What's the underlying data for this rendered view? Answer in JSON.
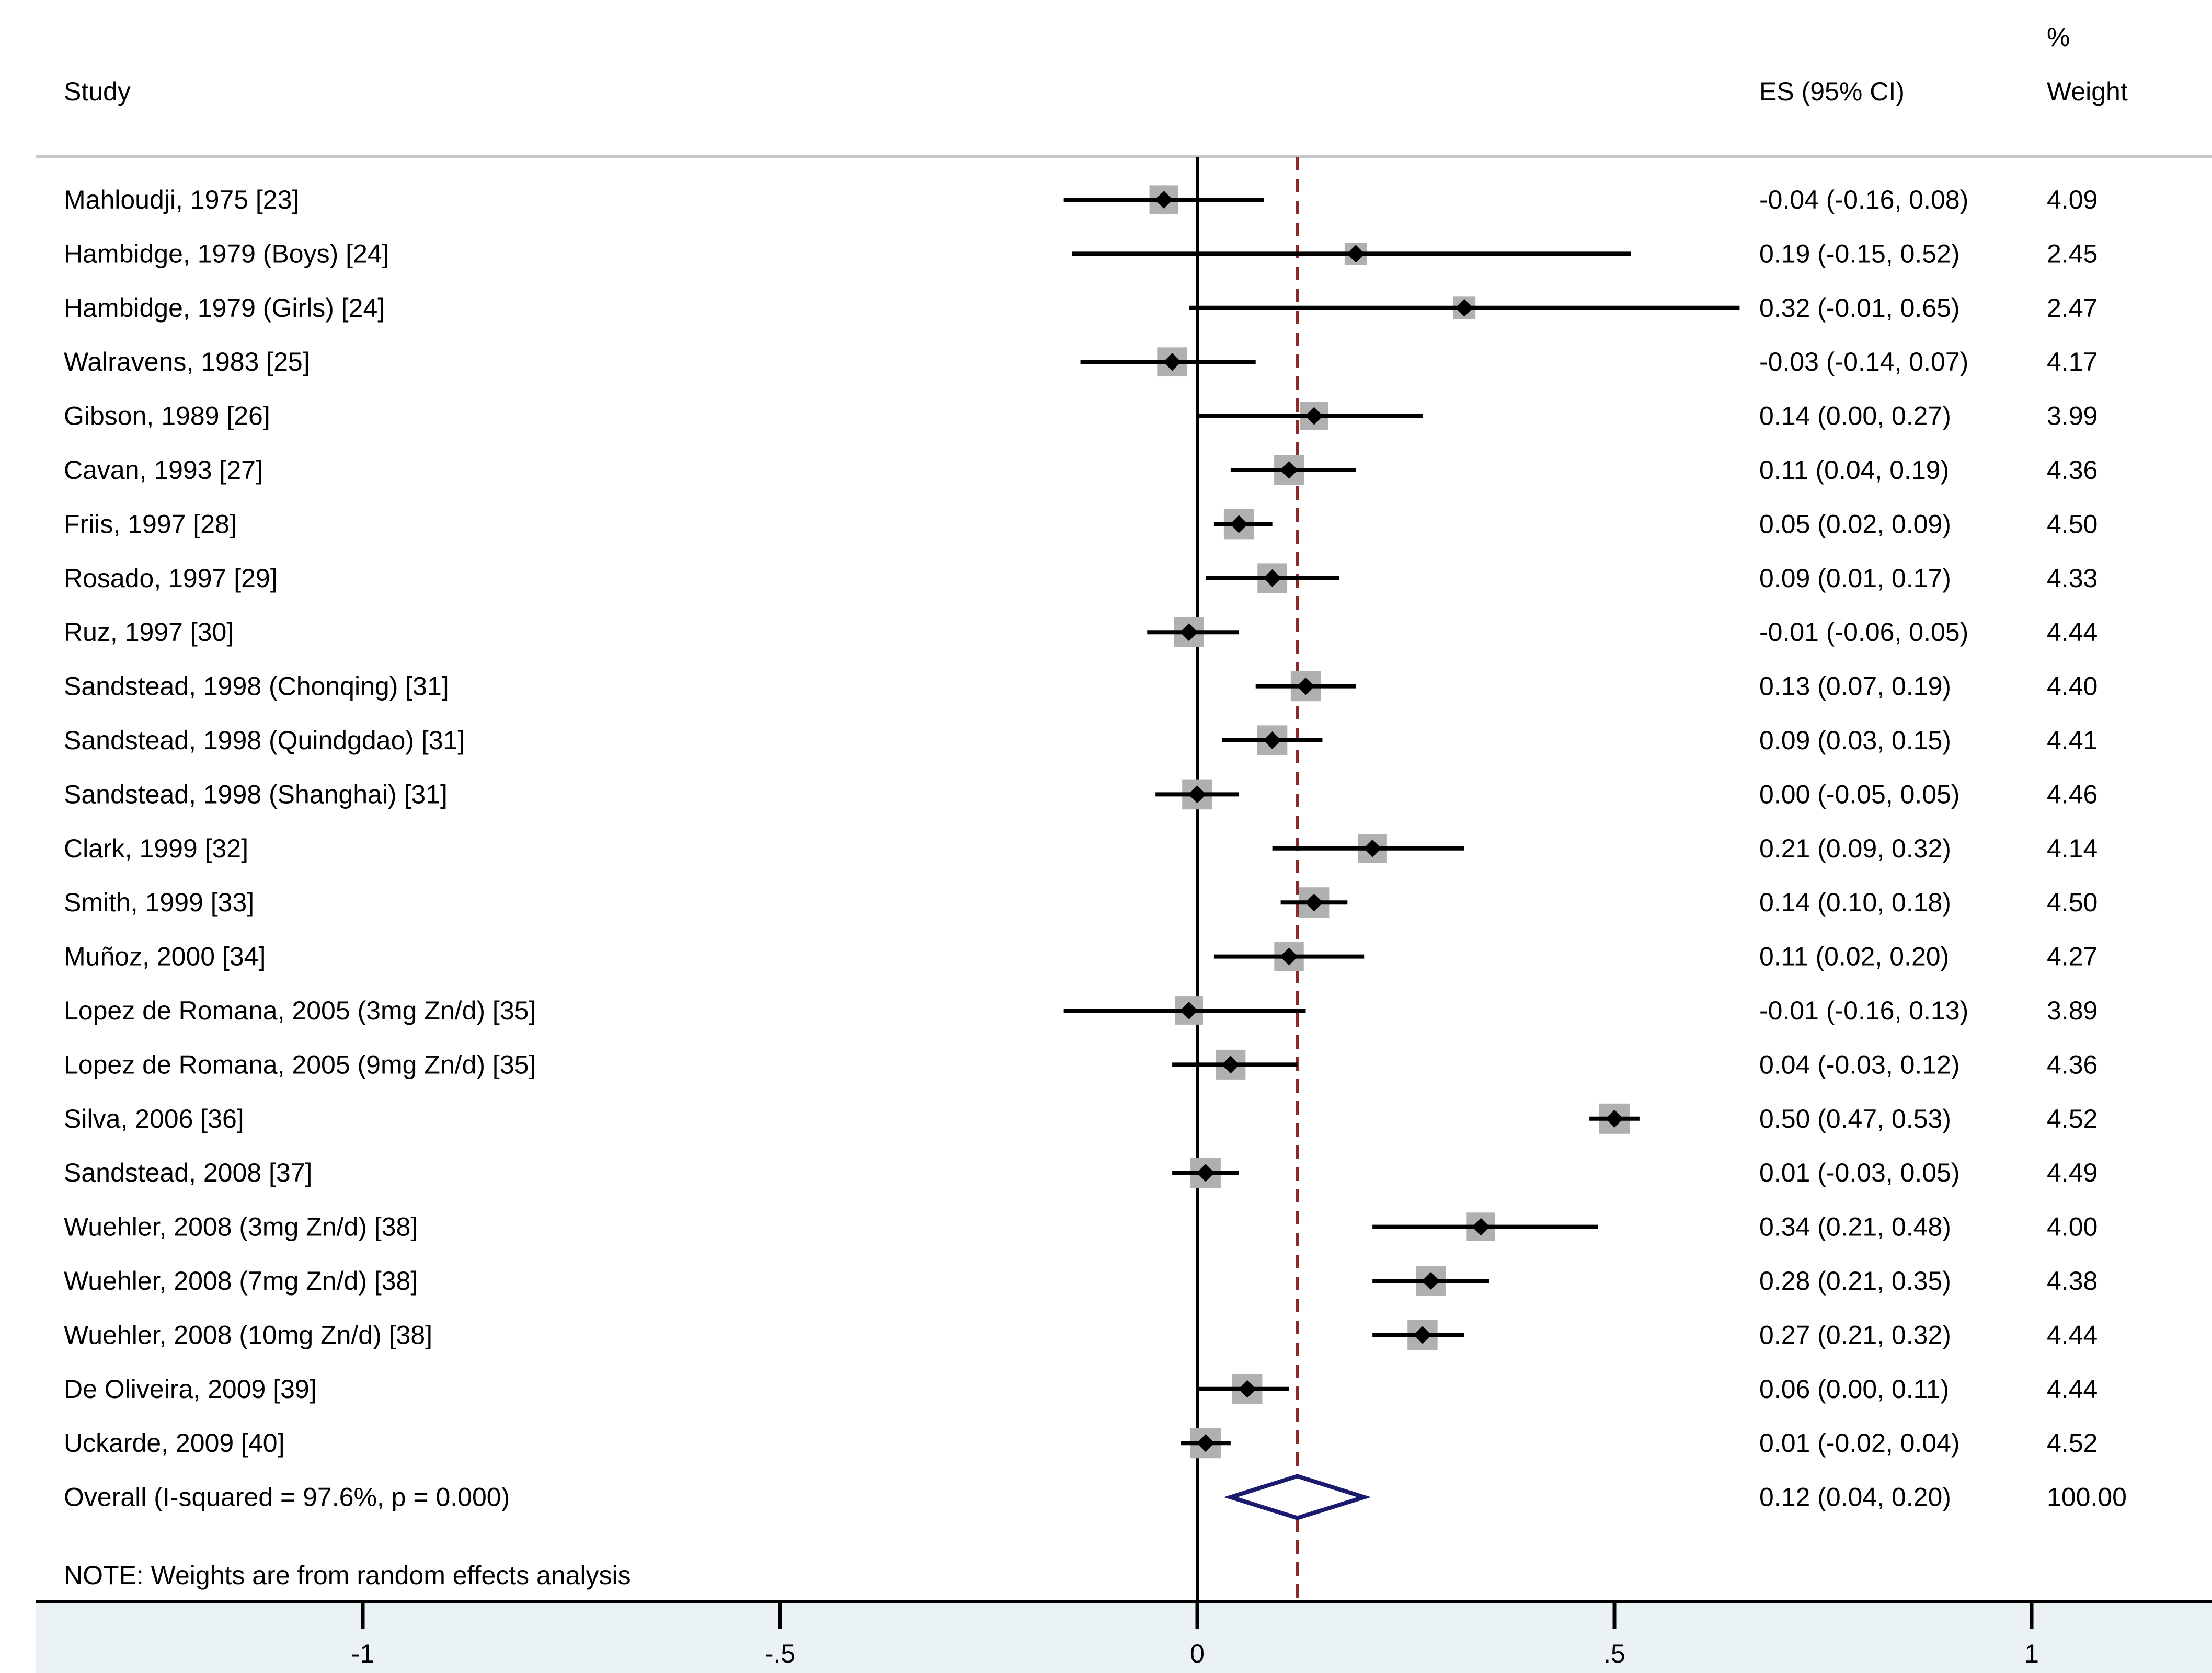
{
  "chart_data": {
    "type": "forest",
    "headers": {
      "study": "Study",
      "es": "ES (95% CI)",
      "weight_top": "%",
      "weight_bottom": "Weight"
    },
    "studies": [
      {
        "label": "Mahloudji, 1975 [23]",
        "es": -0.04,
        "lo": -0.16,
        "hi": 0.08,
        "es_text": "-0.04 (-0.16, 0.08)",
        "weight": "4.09"
      },
      {
        "label": "Hambidge, 1979 (Boys) [24]",
        "es": 0.19,
        "lo": -0.15,
        "hi": 0.52,
        "es_text": "0.19 (-0.15, 0.52)",
        "weight": "2.45"
      },
      {
        "label": "Hambidge, 1979 (Girls) [24]",
        "es": 0.32,
        "lo": -0.01,
        "hi": 0.65,
        "es_text": "0.32 (-0.01, 0.65)",
        "weight": "2.47"
      },
      {
        "label": "Walravens, 1983 [25]",
        "es": -0.03,
        "lo": -0.14,
        "hi": 0.07,
        "es_text": "-0.03 (-0.14, 0.07)",
        "weight": "4.17"
      },
      {
        "label": "Gibson, 1989 [26]",
        "es": 0.14,
        "lo": 0.0,
        "hi": 0.27,
        "es_text": "0.14 (0.00, 0.27)",
        "weight": "3.99"
      },
      {
        "label": "Cavan, 1993 [27]",
        "es": 0.11,
        "lo": 0.04,
        "hi": 0.19,
        "es_text": "0.11 (0.04, 0.19)",
        "weight": "4.36"
      },
      {
        "label": "Friis, 1997 [28]",
        "es": 0.05,
        "lo": 0.02,
        "hi": 0.09,
        "es_text": "0.05 (0.02, 0.09)",
        "weight": "4.50"
      },
      {
        "label": "Rosado, 1997 [29]",
        "es": 0.09,
        "lo": 0.01,
        "hi": 0.17,
        "es_text": "0.09 (0.01, 0.17)",
        "weight": "4.33"
      },
      {
        "label": "Ruz, 1997 [30]",
        "es": -0.01,
        "lo": -0.06,
        "hi": 0.05,
        "es_text": "-0.01 (-0.06, 0.05)",
        "weight": "4.44"
      },
      {
        "label": "Sandstead, 1998 (Chonqing) [31]",
        "es": 0.13,
        "lo": 0.07,
        "hi": 0.19,
        "es_text": "0.13 (0.07, 0.19)",
        "weight": "4.40"
      },
      {
        "label": "Sandstead, 1998 (Quindgdao) [31]",
        "es": 0.09,
        "lo": 0.03,
        "hi": 0.15,
        "es_text": "0.09 (0.03, 0.15)",
        "weight": "4.41"
      },
      {
        "label": "Sandstead, 1998 (Shanghai) [31]",
        "es": 0.0,
        "lo": -0.05,
        "hi": 0.05,
        "es_text": "0.00 (-0.05, 0.05)",
        "weight": "4.46"
      },
      {
        "label": "Clark, 1999 [32]",
        "es": 0.21,
        "lo": 0.09,
        "hi": 0.32,
        "es_text": "0.21 (0.09, 0.32)",
        "weight": "4.14"
      },
      {
        "label": "Smith, 1999 [33]",
        "es": 0.14,
        "lo": 0.1,
        "hi": 0.18,
        "es_text": "0.14 (0.10, 0.18)",
        "weight": "4.50"
      },
      {
        "label": "Muñoz, 2000 [34]",
        "es": 0.11,
        "lo": 0.02,
        "hi": 0.2,
        "es_text": "0.11 (0.02, 0.20)",
        "weight": "4.27"
      },
      {
        "label": "Lopez de Romana, 2005  (3mg Zn/d) [35]",
        "es": -0.01,
        "lo": -0.16,
        "hi": 0.13,
        "es_text": "-0.01 (-0.16, 0.13)",
        "weight": "3.89"
      },
      {
        "label": "Lopez de Romana, 2005 (9mg Zn/d) [35]",
        "es": 0.04,
        "lo": -0.03,
        "hi": 0.12,
        "es_text": "0.04 (-0.03, 0.12)",
        "weight": "4.36"
      },
      {
        "label": "Silva, 2006 [36]",
        "es": 0.5,
        "lo": 0.47,
        "hi": 0.53,
        "es_text": "0.50 (0.47, 0.53)",
        "weight": "4.52"
      },
      {
        "label": "Sandstead, 2008 [37]",
        "es": 0.01,
        "lo": -0.03,
        "hi": 0.05,
        "es_text": "0.01 (-0.03, 0.05)",
        "weight": "4.49"
      },
      {
        "label": "Wuehler, 2008 (3mg Zn/d) [38]",
        "es": 0.34,
        "lo": 0.21,
        "hi": 0.48,
        "es_text": "0.34 (0.21, 0.48)",
        "weight": "4.00"
      },
      {
        "label": "Wuehler, 2008 (7mg Zn/d) [38]",
        "es": 0.28,
        "lo": 0.21,
        "hi": 0.35,
        "es_text": "0.28 (0.21, 0.35)",
        "weight": "4.38"
      },
      {
        "label": "Wuehler, 2008 (10mg Zn/d) [38]",
        "es": 0.27,
        "lo": 0.21,
        "hi": 0.32,
        "es_text": "0.27 (0.21, 0.32)",
        "weight": "4.44"
      },
      {
        "label": "De Oliveira, 2009 [39]",
        "es": 0.06,
        "lo": 0.0,
        "hi": 0.11,
        "es_text": "0.06 (0.00, 0.11)",
        "weight": "4.44"
      },
      {
        "label": "Uckarde, 2009 [40]",
        "es": 0.01,
        "lo": -0.02,
        "hi": 0.04,
        "es_text": "0.01 (-0.02, 0.04)",
        "weight": "4.52"
      }
    ],
    "overall": {
      "label": "Overall  (I-squared = 97.6%, p = 0.000)",
      "es": 0.12,
      "lo": 0.04,
      "hi": 0.2,
      "es_text": "0.12 (0.04, 0.20)",
      "weight": "100.00"
    },
    "note": "NOTE: Weights are from random effects analysis",
    "xlim": [
      -1.4,
      1.2
    ],
    "xticks": [
      -1,
      -0.5,
      0,
      0.5,
      1
    ],
    "xtick_labels": [
      "-1",
      "-.5",
      "0",
      ".5",
      "1"
    ],
    "null_line": 0,
    "colors": {
      "box": "#b0b0b0",
      "ci": "#000000",
      "point": "#000000",
      "overall_diamond": "#1a1a6e",
      "overall_line": "#8b2a2a",
      "axis_band": "#eaf2f4",
      "separator": "#c8c8c8"
    }
  }
}
